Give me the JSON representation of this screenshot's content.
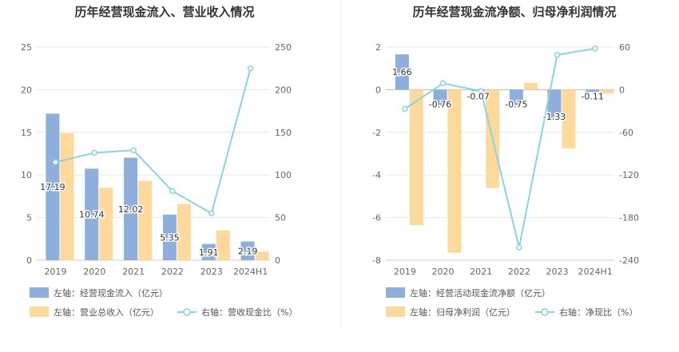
{
  "charts": [
    {
      "title": "历年经营现金流入、营业收入情况",
      "chart_data": {
        "type": "bar",
        "categories": [
          "2019",
          "2020",
          "2021",
          "2022",
          "2023",
          "2024H1"
        ],
        "left_axis": {
          "min": 0,
          "max": 25,
          "ticks": [
            "0",
            "5",
            "10",
            "15",
            "20",
            "25"
          ]
        },
        "right_axis": {
          "min": 0,
          "max": 250,
          "ticks": [
            "0",
            "50",
            "100",
            "150",
            "200",
            "250"
          ]
        },
        "grid": true,
        "legend_position": "bottom",
        "series": [
          {
            "name": "左轴：经营现金流入（亿元）",
            "type": "bar",
            "axis": "left",
            "color": "#8eaedb",
            "values": [
              17.19,
              10.74,
              12.02,
              5.35,
              1.91,
              2.19
            ],
            "labels": [
              "17.19",
              "10.74",
              "12.02",
              "5.35",
              "1.91",
              "2.19"
            ]
          },
          {
            "name": "左轴：营业总收入（亿元）",
            "type": "bar",
            "axis": "left",
            "color": "#fdd99b",
            "values": [
              14.9,
              8.5,
              9.3,
              6.6,
              3.5,
              1.0
            ]
          },
          {
            "name": "右轴：营收现金比（%）",
            "type": "line",
            "axis": "right",
            "color": "#8ad4dd",
            "values": [
              115,
              126,
              129,
              81,
              55,
              225
            ]
          }
        ]
      }
    },
    {
      "title": "历年经营现金流净额、归母净利润情况",
      "chart_data": {
        "type": "bar",
        "categories": [
          "2019",
          "2020",
          "2021",
          "2022",
          "2023",
          "2024H1"
        ],
        "left_axis": {
          "min": -8,
          "max": 2,
          "ticks": [
            "-8",
            "-6",
            "-4",
            "-2",
            "0",
            "2"
          ]
        },
        "right_axis": {
          "min": -240,
          "max": 60,
          "ticks": [
            "-240",
            "-180",
            "-120",
            "-60",
            "0",
            "60"
          ]
        },
        "grid": true,
        "legend_position": "bottom",
        "series": [
          {
            "name": "左轴：经营活动现金流净额（亿元）",
            "type": "bar",
            "axis": "left",
            "color": "#8eaedb",
            "values": [
              1.66,
              -0.76,
              -0.07,
              -0.75,
              -1.33,
              -0.11
            ],
            "labels": [
              "1.66",
              "-0.76",
              "-0.07",
              "-0.75",
              "-1.33",
              "-0.11"
            ]
          },
          {
            "name": "左轴：归母净利润（亿元）",
            "type": "bar",
            "axis": "left",
            "color": "#fdd99b",
            "values": [
              -6.35,
              -7.65,
              -4.6,
              0.32,
              -2.75,
              -0.18
            ]
          },
          {
            "name": "右轴：净现比（%）",
            "type": "line",
            "axis": "right",
            "color": "#8ad4dd",
            "values": [
              -27,
              9,
              -2,
              -222,
              49,
              58
            ]
          }
        ]
      }
    }
  ]
}
